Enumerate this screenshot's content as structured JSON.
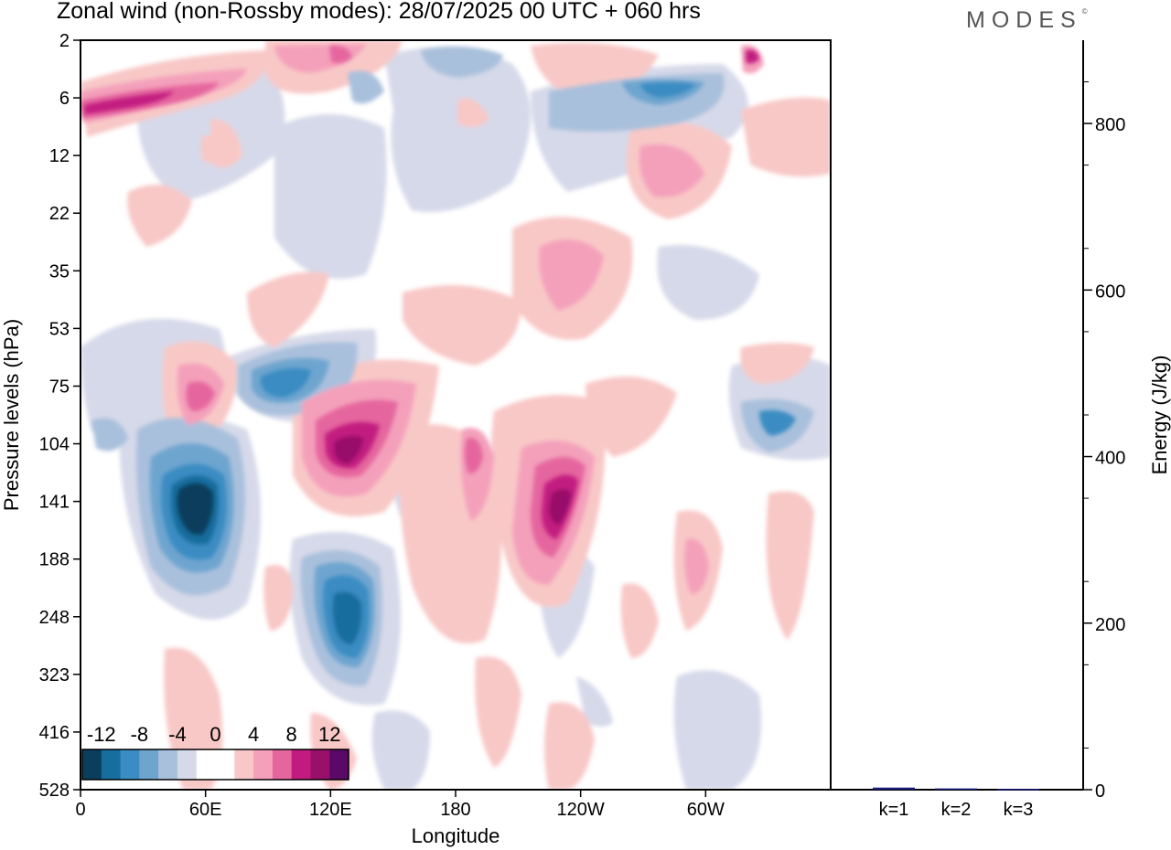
{
  "chart_data": [
    {
      "type": "heatmap",
      "title": "Zonal wind (non-Rossby modes):  28/07/2025  00 UTC  + 060 hrs",
      "xlabel": "Longitude",
      "ylabel": "Pressure levels (hPa)",
      "x_ticks": [
        {
          "lon": 0,
          "label": "0"
        },
        {
          "lon": 60,
          "label": "60E"
        },
        {
          "lon": 120,
          "label": "120E"
        },
        {
          "lon": 180,
          "label": "180"
        },
        {
          "lon": 240,
          "label": "120W"
        },
        {
          "lon": 300,
          "label": "60W"
        }
      ],
      "xlim": [
        0,
        360
      ],
      "y_levels": [
        "2",
        "6",
        "12",
        "22",
        "35",
        "53",
        "75",
        "104",
        "141",
        "188",
        "248",
        "323",
        "416",
        "528"
      ],
      "colorbar": {
        "labels": [
          "-12",
          "-8",
          "-4",
          "0",
          "4",
          "8",
          "12"
        ],
        "colors": [
          "#0b3d5c",
          "#166d9e",
          "#3a8cc2",
          "#6ea5cf",
          "#a9c0dc",
          "#d6d9e9",
          "#ffffff",
          "#ffffff",
          "#f8c8c6",
          "#f4a0bb",
          "#e5669e",
          "#c21b80",
          "#98106a",
          "#5a0a66"
        ]
      },
      "features": [
        {
          "sign": "negative",
          "peak": -12,
          "lon": 55,
          "level": "141"
        },
        {
          "sign": "negative",
          "peak": -8,
          "lon": 127,
          "level": "248"
        },
        {
          "sign": "negative",
          "peak": -8,
          "lon": 88,
          "level": "75"
        },
        {
          "sign": "positive",
          "peak": 10,
          "lon": 125,
          "level": "104"
        },
        {
          "sign": "positive",
          "peak": 10,
          "lon": 233,
          "level": "141"
        },
        {
          "sign": "positive",
          "peak": 8,
          "lon": 15,
          "level": "6"
        },
        {
          "sign": "negative",
          "peak": -6,
          "lon": 338,
          "level": "104"
        }
      ]
    },
    {
      "type": "bar",
      "categories": [
        "k=1",
        "k=2",
        "k=3"
      ],
      "values": [
        2.5,
        1.5,
        1.0
      ],
      "ylabel": "Energy (J/kg)",
      "ylim": [
        0,
        900
      ],
      "y_ticks": [
        0,
        200,
        400,
        600,
        800
      ],
      "color": "#1a1a7a"
    }
  ],
  "brand": {
    "name": "MODES",
    "mark": "©"
  }
}
